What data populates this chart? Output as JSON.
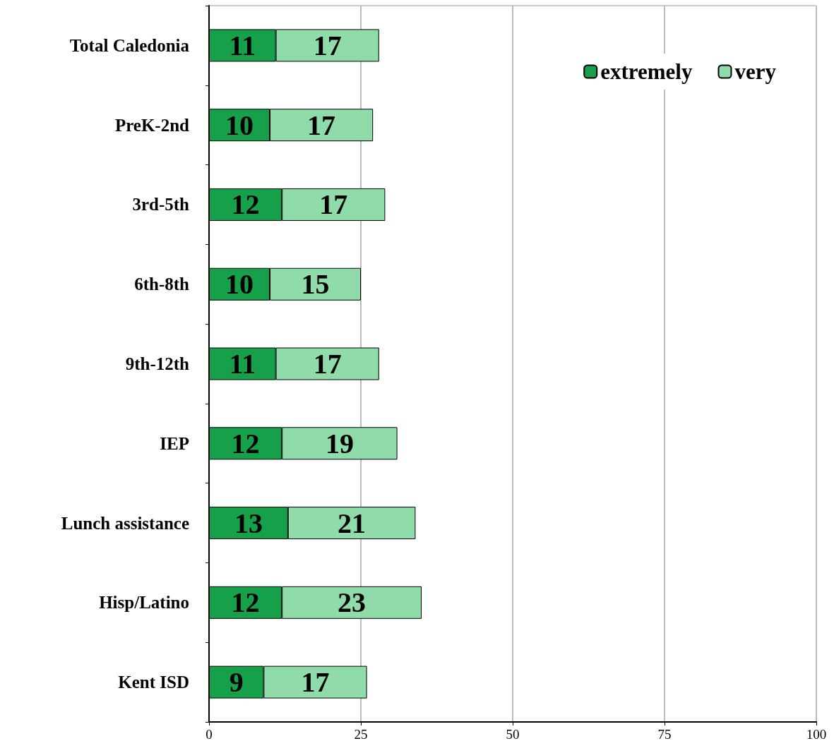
{
  "chart_data": {
    "type": "bar",
    "orientation": "horizontal",
    "stacked": true,
    "data_labels": true,
    "grid": "x",
    "legend": "top right",
    "categories": [
      "Total Caledonia",
      "PreK-2nd",
      "3rd-5th",
      "6th-8th",
      "9th-12th",
      "IEP",
      "Lunch assistance",
      "Hisp/Latino",
      "Kent ISD"
    ],
    "series": [
      {
        "name": "extremely",
        "color": "#16a04a",
        "values": [
          11,
          10,
          12,
          10,
          11,
          12,
          13,
          12,
          9
        ]
      },
      {
        "name": "very",
        "color": "#8fdcaa",
        "values": [
          17,
          17,
          17,
          15,
          17,
          19,
          21,
          23,
          17
        ]
      }
    ],
    "xlim": [
      0,
      100
    ],
    "xticks": [
      0,
      25,
      50,
      75,
      100
    ]
  }
}
